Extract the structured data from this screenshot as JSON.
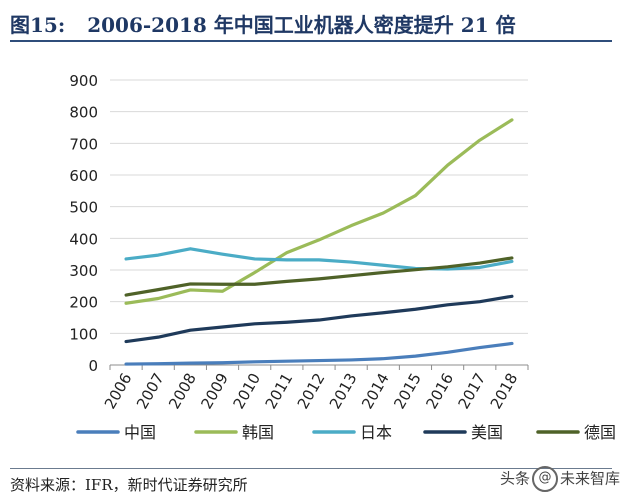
{
  "header": {
    "figure_label": "图15:",
    "figure_title": "2006-2018 年中国工业机器人密度提升 21 倍"
  },
  "footer": {
    "source": "资料来源：IFR，新时代证券研究所",
    "watermark_left": "头条",
    "watermark_icon": "@",
    "watermark_right": "未来智库"
  },
  "chart_data": {
    "type": "line",
    "title": "2006-2018 年中国工业机器人密度提升 21 倍",
    "xlabel": "",
    "ylabel": "",
    "categories": [
      "2006",
      "2007",
      "2008",
      "2009",
      "2010",
      "2011",
      "2012",
      "2013",
      "2014",
      "2015",
      "2016",
      "2017",
      "2018"
    ],
    "ylim": [
      0,
      900
    ],
    "yticks": [
      0,
      100,
      200,
      300,
      400,
      500,
      600,
      700,
      800,
      900
    ],
    "legend_position": "bottom",
    "series": [
      {
        "name": "中国",
        "color": "#4a7ebb",
        "values": [
          3,
          4,
          6,
          7,
          10,
          12,
          14,
          16,
          20,
          28,
          40,
          55,
          68
        ]
      },
      {
        "name": "韩国",
        "color": "#9bbb59",
        "values": [
          195,
          210,
          237,
          233,
          292,
          355,
          395,
          440,
          480,
          535,
          631,
          710,
          774
        ]
      },
      {
        "name": "日本",
        "color": "#4bacc6",
        "values": [
          335,
          347,
          367,
          350,
          335,
          332,
          332,
          325,
          315,
          305,
          303,
          308,
          327
        ]
      },
      {
        "name": "美国",
        "color": "#1f3a5a",
        "values": [
          74,
          88,
          110,
          120,
          130,
          135,
          142,
          155,
          165,
          176,
          190,
          200,
          217
        ]
      },
      {
        "name": "德国",
        "color": "#4f6228",
        "values": [
          221,
          238,
          256,
          255,
          255,
          264,
          272,
          282,
          292,
          301,
          310,
          322,
          338
        ]
      }
    ]
  }
}
